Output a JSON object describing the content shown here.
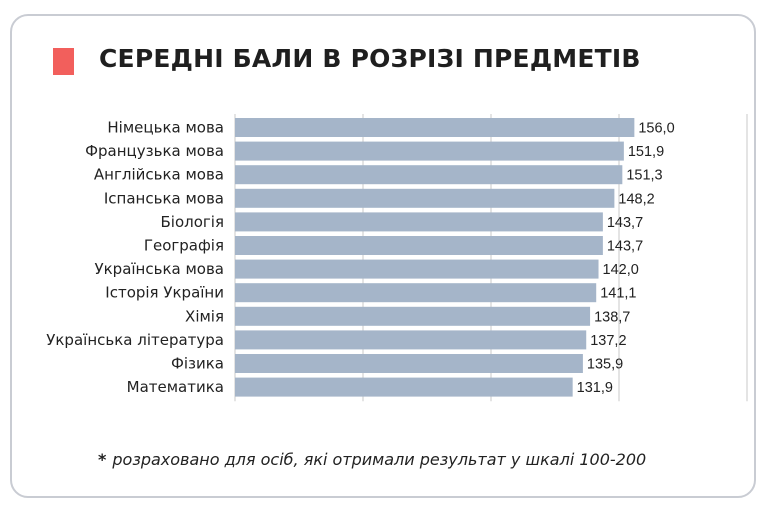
{
  "title": "СЕРЕДНІ БАЛИ В РОЗРІЗІ ПРЕДМЕТІВ",
  "footnote": {
    "star": "*",
    "text": "розраховано для осіб, які отримали результат у шкалі 100-200"
  },
  "colors": {
    "bar": "#a5b5c9",
    "accent": "#f25f5c",
    "grid": "#c8c8c8",
    "text": "#222222"
  },
  "chart_data": {
    "type": "bar",
    "orientation": "horizontal",
    "categories": [
      "Німецька мова",
      "Французька мова",
      "Англійська мова",
      "Іспанська мова",
      "Біологія",
      "Географія",
      "Українська мова",
      "Історія України",
      "Хімія",
      "Українська література",
      "Фізика",
      "Математика"
    ],
    "values": [
      156.0,
      151.9,
      151.3,
      148.2,
      143.7,
      143.7,
      142.0,
      141.1,
      138.7,
      137.2,
      135.9,
      131.9
    ],
    "value_labels": [
      "156,0",
      "151,9",
      "151,3",
      "148,2",
      "143,7",
      "143,7",
      "142,0",
      "141,1",
      "138,7",
      "137,2",
      "135,9",
      "131,9"
    ],
    "title": "СЕРЕДНІ БАЛИ В РОЗРІЗІ ПРЕДМЕТІВ",
    "xlabel": "",
    "ylabel": "",
    "xlim": [
      0,
      200
    ],
    "grid": true,
    "legend": "none"
  }
}
